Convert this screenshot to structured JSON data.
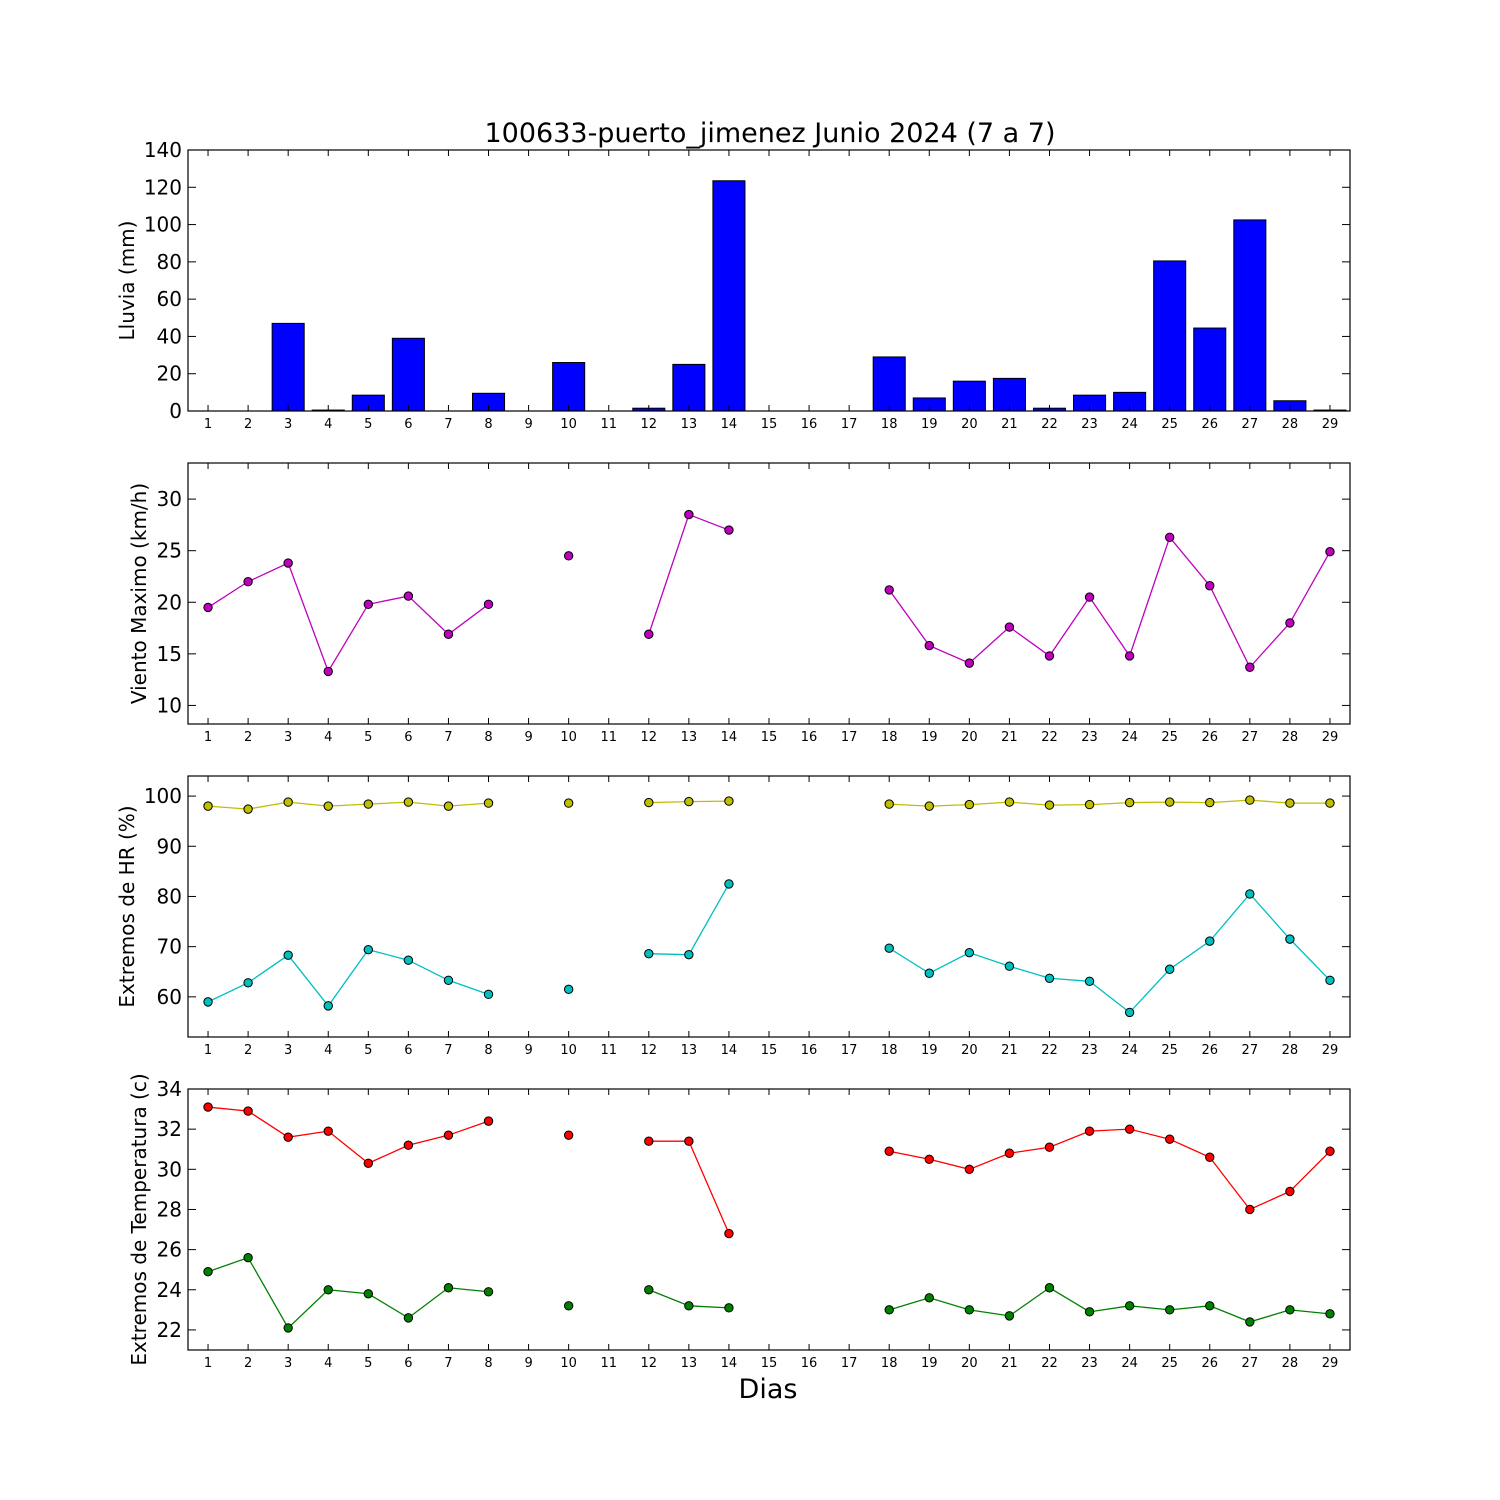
{
  "chart_data": {
    "title": "100633-puerto_jimenez Junio 2024  (7 a 7)",
    "xlabel": "Dias",
    "x": [
      1,
      2,
      3,
      4,
      5,
      6,
      7,
      8,
      9,
      10,
      11,
      12,
      13,
      14,
      15,
      16,
      17,
      18,
      19,
      20,
      21,
      22,
      23,
      24,
      25,
      26,
      27,
      28,
      29
    ],
    "xlim": [
      0.5,
      29.5
    ],
    "panels": [
      {
        "type": "bar",
        "ylabel": "Lluvia (mm)",
        "ylim": [
          0,
          140
        ],
        "yticks": [
          0,
          20,
          40,
          60,
          80,
          100,
          120,
          140
        ],
        "series": [
          {
            "color": "#0000ff",
            "values": [
              0,
              0,
              47,
              0.5,
              8.5,
              39,
              0,
              9.5,
              0,
              26,
              0,
              1.5,
              25,
              123.5,
              0,
              0,
              0,
              29,
              7,
              16,
              17.5,
              1.5,
              8.5,
              10,
              80.5,
              44.5,
              102.5,
              5.5,
              0.5
            ]
          }
        ]
      },
      {
        "type": "line",
        "ylabel": "Viento Maximo (km/h)",
        "ylim": [
          8.2,
          33.5
        ],
        "yticks": [
          10,
          15,
          20,
          25,
          30
        ],
        "series": [
          {
            "color": "#bf00bf",
            "values": [
              19.5,
              22,
              23.8,
              13.3,
              19.8,
              20.6,
              16.9,
              19.8,
              null,
              24.5,
              null,
              16.9,
              28.5,
              27,
              null,
              null,
              null,
              21.2,
              15.8,
              14.1,
              17.6,
              14.8,
              20.5,
              14.8,
              26.3,
              21.6,
              13.7,
              18,
              24.9
            ]
          }
        ]
      },
      {
        "type": "line",
        "ylabel": "Extremos de HR (%)",
        "ylim": [
          52,
          104
        ],
        "yticks": [
          60,
          70,
          80,
          90,
          100
        ],
        "series": [
          {
            "color": "#bfbf00",
            "values": [
              98,
              97.4,
              98.8,
              98,
              98.4,
              98.8,
              98,
              98.6,
              null,
              98.6,
              null,
              98.7,
              98.9,
              99,
              null,
              null,
              null,
              98.4,
              98,
              98.3,
              98.8,
              98.2,
              98.3,
              98.7,
              98.8,
              98.7,
              99.2,
              98.6,
              98.6
            ]
          },
          {
            "color": "#00bfbf",
            "values": [
              59,
              62.8,
              68.3,
              58.2,
              69.4,
              67.3,
              63.3,
              60.5,
              null,
              61.5,
              null,
              68.6,
              68.4,
              82.5,
              null,
              null,
              null,
              69.7,
              64.7,
              68.8,
              66.1,
              63.7,
              63.1,
              56.9,
              65.5,
              71.1,
              80.5,
              71.5,
              63.3
            ]
          }
        ]
      },
      {
        "type": "line",
        "ylabel": "Extremos de Temperatura (c)",
        "ylim": [
          21,
          34
        ],
        "yticks": [
          22,
          24,
          26,
          28,
          30,
          32,
          34
        ],
        "series": [
          {
            "color": "#ff0000",
            "values": [
              33.1,
              32.9,
              31.6,
              31.9,
              30.3,
              31.2,
              31.7,
              32.4,
              null,
              31.7,
              null,
              31.4,
              31.4,
              26.8,
              null,
              null,
              null,
              30.9,
              30.5,
              30,
              30.8,
              31.1,
              31.9,
              32,
              31.5,
              30.6,
              28,
              28.9,
              30.9
            ]
          },
          {
            "color": "#008000",
            "values": [
              24.9,
              25.6,
              22.1,
              24,
              23.8,
              22.6,
              24.1,
              23.9,
              null,
              23.2,
              null,
              24,
              23.2,
              23.1,
              null,
              null,
              null,
              23,
              23.6,
              23,
              22.7,
              24.1,
              22.9,
              23.2,
              23,
              23.2,
              22.4,
              23,
              22.8
            ]
          }
        ]
      }
    ]
  }
}
